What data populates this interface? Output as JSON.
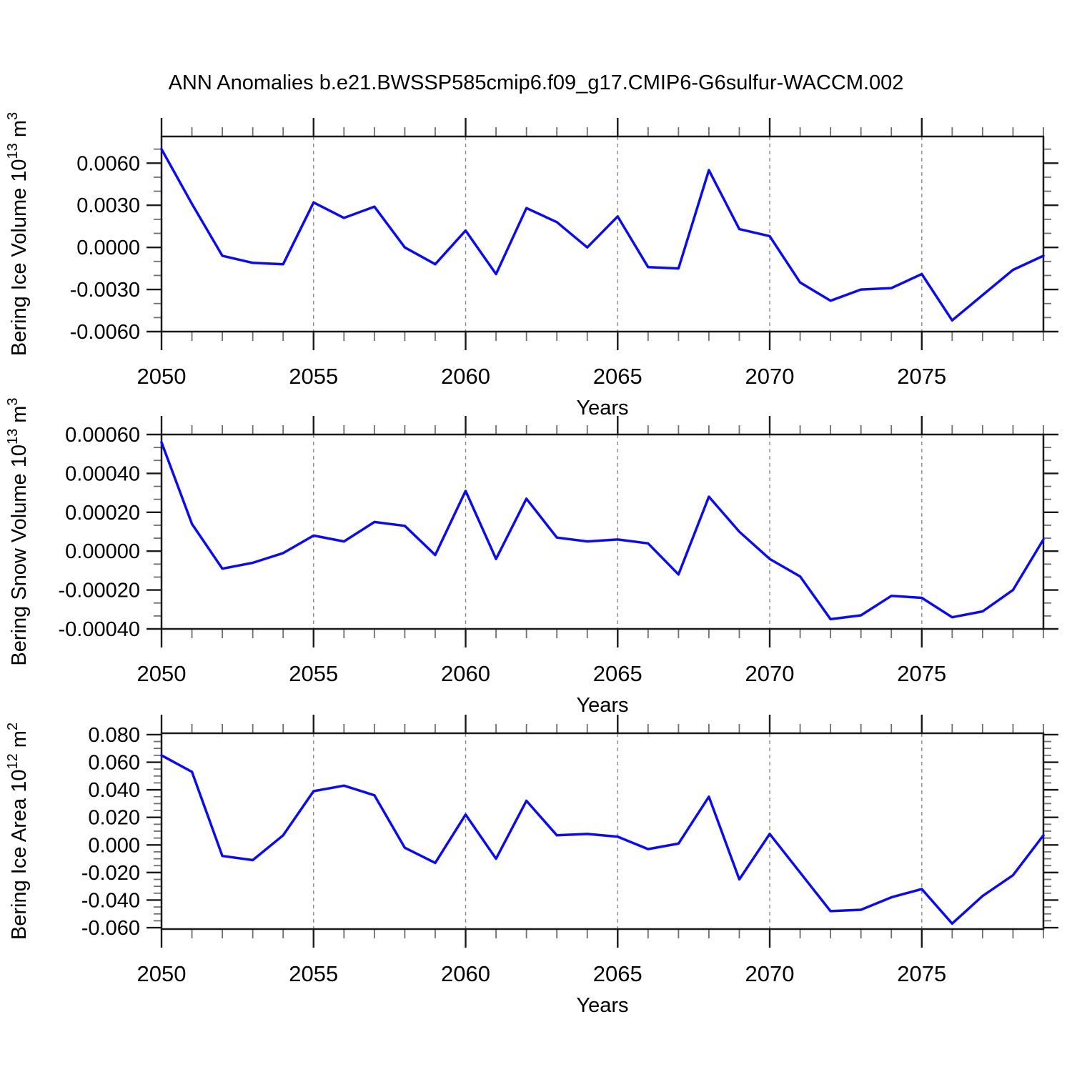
{
  "title": "ANN Anomalies b.e21.BWSSP585cmip6.f09_g17.CMIP6-G6sulfur-WACCM.002",
  "styles": {
    "line_color": "#0b0bee",
    "axis_color": "#1a1a1a",
    "minor_tick_color": "#6e6e6e",
    "grid_color": "#8a8a8a",
    "text_color": "#000000",
    "background": "#ffffff"
  },
  "chart_data": [
    {
      "type": "line",
      "panel": 1,
      "xlabel": "Years",
      "ylabel": "Bering Ice Volume 10^13 m^3",
      "ylabel_parts": [
        {
          "t": "Bering Ice Volume 10"
        },
        {
          "t": "13",
          "sup": true
        },
        {
          "t": " m"
        },
        {
          "t": "3",
          "sup": true
        }
      ],
      "x": [
        2050,
        2051,
        2052,
        2053,
        2054,
        2055,
        2056,
        2057,
        2058,
        2059,
        2060,
        2061,
        2062,
        2063,
        2064,
        2065,
        2066,
        2067,
        2068,
        2069,
        2070,
        2071,
        2072,
        2073,
        2074,
        2075,
        2076,
        2077,
        2078,
        2079
      ],
      "values": [
        0.007,
        0.0031,
        -0.0006,
        -0.0011,
        -0.0012,
        0.0032,
        0.0021,
        0.0029,
        0.0,
        -0.0012,
        0.0012,
        -0.0019,
        0.0028,
        0.0018,
        0.0,
        0.0022,
        -0.0014,
        -0.0015,
        0.0055,
        0.0013,
        0.0008,
        -0.0025,
        -0.0038,
        -0.003,
        -0.0029,
        -0.0019,
        -0.0052,
        -0.0034,
        -0.0016,
        -0.0006
      ],
      "xlim": [
        2050,
        2079
      ],
      "ylim": [
        -0.006,
        0.0079
      ],
      "yticks": [
        {
          "v": 0.006,
          "label": "0.0060"
        },
        {
          "v": 0.003,
          "label": "0.0030"
        },
        {
          "v": 0.0,
          "label": "0.0000"
        },
        {
          "v": -0.003,
          "label": "-0.0030"
        },
        {
          "v": -0.006,
          "label": "-0.0060"
        }
      ],
      "y_major_step": 0.003,
      "y_minors_per_interval": 2,
      "xticks": [
        {
          "v": 2050,
          "label": "2050"
        },
        {
          "v": 2055,
          "label": "2055"
        },
        {
          "v": 2060,
          "label": "2060"
        },
        {
          "v": 2065,
          "label": "2065"
        },
        {
          "v": 2070,
          "label": "2070"
        },
        {
          "v": 2075,
          "label": "2075"
        }
      ],
      "x_minor_step": 1,
      "grid_x": [
        2055,
        2060,
        2065,
        2070,
        2075
      ],
      "grid_on": true,
      "legend": "none"
    },
    {
      "type": "line",
      "panel": 2,
      "xlabel": "Years",
      "ylabel": "Bering Snow Volume 10^13 m^3",
      "ylabel_parts": [
        {
          "t": "Bering Snow Volume 10"
        },
        {
          "t": "13",
          "sup": true
        },
        {
          "t": " m"
        },
        {
          "t": "3",
          "sup": true
        }
      ],
      "x": [
        2050,
        2051,
        2052,
        2053,
        2054,
        2055,
        2056,
        2057,
        2058,
        2059,
        2060,
        2061,
        2062,
        2063,
        2064,
        2065,
        2066,
        2067,
        2068,
        2069,
        2070,
        2071,
        2072,
        2073,
        2074,
        2075,
        2076,
        2077,
        2078,
        2079
      ],
      "values": [
        0.00056,
        0.00014,
        -9e-05,
        -6e-05,
        -1e-05,
        8e-05,
        5e-05,
        0.00015,
        0.00013,
        -2e-05,
        0.00031,
        -4e-05,
        0.00027,
        7e-05,
        5e-05,
        6e-05,
        4e-05,
        -0.00012,
        0.00028,
        0.0001,
        -4e-05,
        -0.00013,
        -0.00035,
        -0.00033,
        -0.00023,
        -0.00024,
        -0.00034,
        -0.00031,
        -0.0002,
        6e-05
      ],
      "xlim": [
        2050,
        2079
      ],
      "ylim": [
        -0.0004,
        0.0006
      ],
      "yticks": [
        {
          "v": 0.0006,
          "label": "0.00060"
        },
        {
          "v": 0.0004,
          "label": "0.00040"
        },
        {
          "v": 0.0002,
          "label": "0.00020"
        },
        {
          "v": 0.0,
          "label": "0.00000"
        },
        {
          "v": -0.0002,
          "label": "-0.00020"
        },
        {
          "v": -0.0004,
          "label": "-0.00040"
        }
      ],
      "y_major_step": 0.0002,
      "y_minors_per_interval": 2,
      "xticks": [
        {
          "v": 2050,
          "label": "2050"
        },
        {
          "v": 2055,
          "label": "2055"
        },
        {
          "v": 2060,
          "label": "2060"
        },
        {
          "v": 2065,
          "label": "2065"
        },
        {
          "v": 2070,
          "label": "2070"
        },
        {
          "v": 2075,
          "label": "2075"
        }
      ],
      "x_minor_step": 1,
      "grid_x": [
        2055,
        2060,
        2065,
        2070,
        2075
      ],
      "grid_on": true,
      "legend": "none"
    },
    {
      "type": "line",
      "panel": 3,
      "xlabel": "Years",
      "ylabel": "Bering Ice Area 10^12 m^2",
      "ylabel_parts": [
        {
          "t": "Bering Ice Area 10"
        },
        {
          "t": "12",
          "sup": true
        },
        {
          "t": " m"
        },
        {
          "t": "2",
          "sup": true
        }
      ],
      "x": [
        2050,
        2051,
        2052,
        2053,
        2054,
        2055,
        2056,
        2057,
        2058,
        2059,
        2060,
        2061,
        2062,
        2063,
        2064,
        2065,
        2066,
        2067,
        2068,
        2069,
        2070,
        2071,
        2072,
        2073,
        2074,
        2075,
        2076,
        2077,
        2078,
        2079
      ],
      "values": [
        0.065,
        0.053,
        -0.008,
        -0.011,
        0.007,
        0.039,
        0.043,
        0.036,
        -0.002,
        -0.013,
        0.022,
        -0.01,
        0.032,
        0.007,
        0.008,
        0.006,
        -0.003,
        0.001,
        0.035,
        -0.025,
        0.008,
        -0.02,
        -0.048,
        -0.047,
        -0.038,
        -0.032,
        -0.057,
        -0.037,
        -0.022,
        0.007
      ],
      "xlim": [
        2050,
        2079
      ],
      "ylim": [
        -0.061,
        0.081
      ],
      "yticks": [
        {
          "v": 0.08,
          "label": "0.080"
        },
        {
          "v": 0.06,
          "label": "0.060"
        },
        {
          "v": 0.04,
          "label": "0.040"
        },
        {
          "v": 0.02,
          "label": "0.020"
        },
        {
          "v": 0.0,
          "label": "0.000"
        },
        {
          "v": -0.02,
          "label": "-0.020"
        },
        {
          "v": -0.04,
          "label": "-0.040"
        },
        {
          "v": -0.06,
          "label": "-0.060"
        }
      ],
      "y_major_step": 0.02,
      "y_minors_per_interval": 3,
      "xticks": [
        {
          "v": 2050,
          "label": "2050"
        },
        {
          "v": 2055,
          "label": "2055"
        },
        {
          "v": 2060,
          "label": "2060"
        },
        {
          "v": 2065,
          "label": "2065"
        },
        {
          "v": 2070,
          "label": "2070"
        },
        {
          "v": 2075,
          "label": "2075"
        }
      ],
      "x_minor_step": 1,
      "grid_x": [
        2055,
        2060,
        2065,
        2070,
        2075
      ],
      "grid_on": true,
      "legend": "none"
    }
  ]
}
